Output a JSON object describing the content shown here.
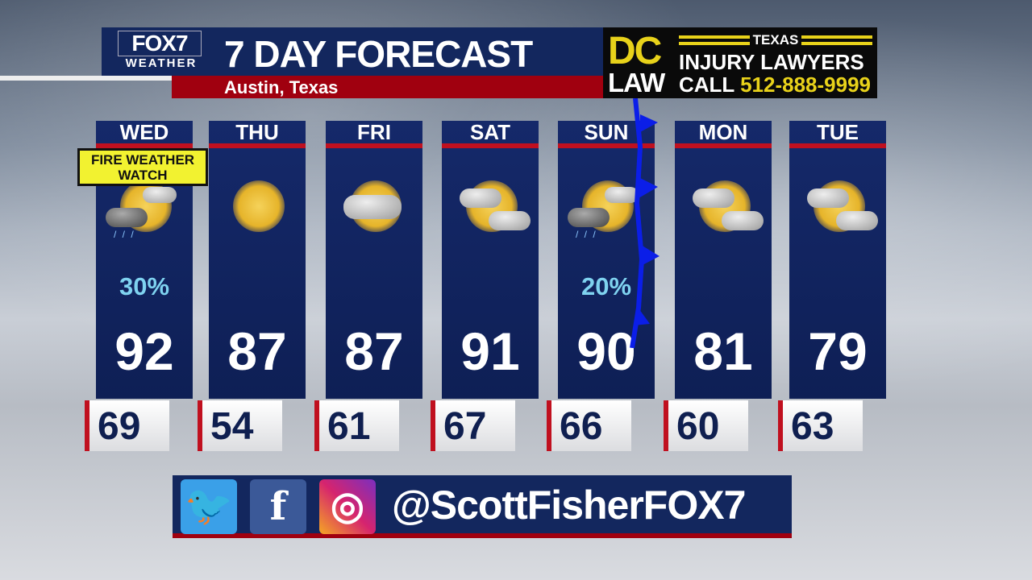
{
  "header": {
    "logo_top": "FOX7",
    "logo_bottom": "WEATHER",
    "title": "7 DAY FORECAST",
    "location": "Austin, Texas"
  },
  "ad": {
    "dc": "DC",
    "law": "LAW",
    "texas": "TEXAS",
    "injury": "INJURY LAWYERS",
    "call": "CALL",
    "phone": "512-888-9999"
  },
  "alert": {
    "text": "FIRE WEATHER WATCH",
    "color": "#f2f230"
  },
  "colors": {
    "panel": "#13275e",
    "accent_red": "#a0000f",
    "rain_text": "#7fd3f0",
    "front": "#0b1ee8"
  },
  "days": [
    {
      "day": "WED",
      "icon": "partly-cloudy-showers",
      "precip": "30%",
      "high": "92",
      "low": "69"
    },
    {
      "day": "THU",
      "icon": "sunny",
      "precip": "",
      "high": "87",
      "low": "54"
    },
    {
      "day": "FRI",
      "icon": "mostly-cloudy",
      "precip": "",
      "high": "87",
      "low": "61"
    },
    {
      "day": "SAT",
      "icon": "partly-cloudy",
      "precip": "",
      "high": "91",
      "low": "67"
    },
    {
      "day": "SUN",
      "icon": "partly-cloudy-showers",
      "precip": "20%",
      "high": "90",
      "low": "66"
    },
    {
      "day": "MON",
      "icon": "partly-cloudy",
      "precip": "",
      "high": "81",
      "low": "60"
    },
    {
      "day": "TUE",
      "icon": "partly-cloudy",
      "precip": "",
      "high": "79",
      "low": "63"
    }
  ],
  "social": {
    "icons": [
      "twitter-icon",
      "facebook-icon",
      "instagram-icon"
    ],
    "handle": "@ScottFisherFOX7"
  }
}
